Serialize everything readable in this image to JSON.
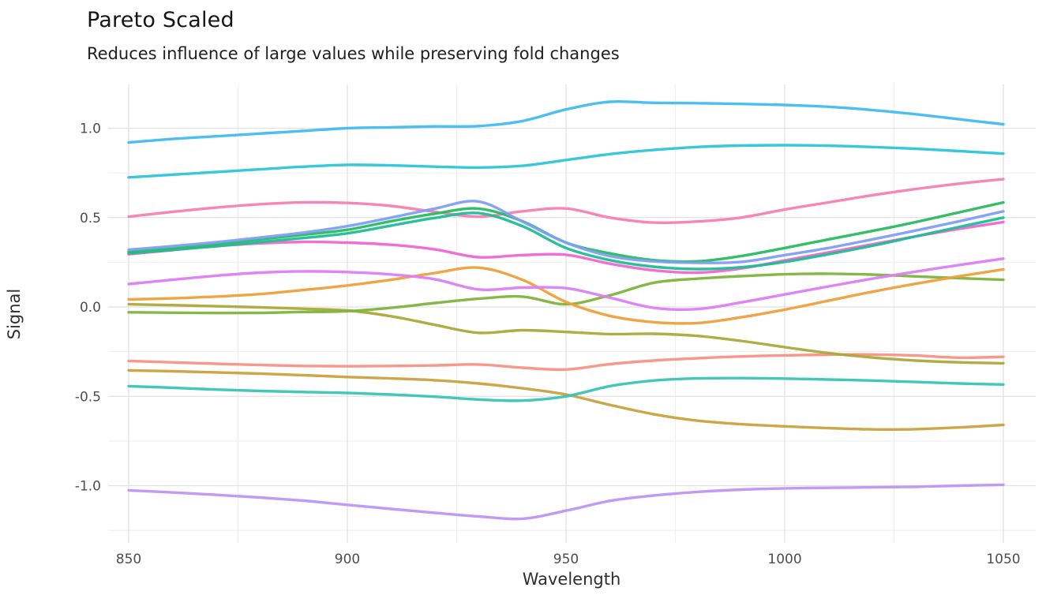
{
  "header": {
    "title": "Pareto Scaled",
    "subtitle": "Reduces influence of large values while preserving fold changes"
  },
  "axes": {
    "x_title": "Wavelength",
    "y_title": "Signal"
  },
  "style": {
    "background": "#ffffff",
    "grid_major_color": "#e2e2e2",
    "grid_minor_color": "#efefef",
    "tick_label_color": "#4d4d4d",
    "line_width": 3.4
  },
  "chart_data": {
    "type": "line",
    "title": "Pareto Scaled",
    "subtitle": "Reduces influence of large values while preserving fold changes",
    "xlabel": "Wavelength",
    "ylabel": "Signal",
    "xlim": [
      845.3,
      1057.4
    ],
    "ylim": [
      -1.32,
      1.245
    ],
    "x_ticks": [
      850,
      900,
      950,
      1000,
      1050
    ],
    "x_minor_ticks": [
      875,
      925,
      975,
      1025
    ],
    "y_ticks": [
      1.0,
      0.5,
      0.0,
      -0.5,
      -1.0
    ],
    "y_minor_ticks": [
      0.75,
      0.25,
      -0.25,
      -0.75,
      -1.25
    ],
    "grid": true,
    "legend": "none",
    "x": [
      850,
      860,
      870,
      880,
      890,
      900,
      910,
      920,
      930,
      940,
      950,
      960,
      970,
      980,
      990,
      1000,
      1010,
      1020,
      1030,
      1040,
      1050
    ],
    "series": [
      {
        "name": "lavender",
        "color": "#BE95F5",
        "values": [
          -1.026,
          -1.038,
          -1.051,
          -1.066,
          -1.084,
          -1.107,
          -1.13,
          -1.152,
          -1.172,
          -1.185,
          -1.14,
          -1.085,
          -1.055,
          -1.035,
          -1.022,
          -1.015,
          -1.012,
          -1.009,
          -1.006,
          -1.0,
          -0.995
        ]
      },
      {
        "name": "salmon",
        "color": "#F89186",
        "values": [
          -0.302,
          -0.31,
          -0.318,
          -0.325,
          -0.33,
          -0.332,
          -0.33,
          -0.327,
          -0.322,
          -0.34,
          -0.35,
          -0.32,
          -0.3,
          -0.287,
          -0.277,
          -0.271,
          -0.267,
          -0.266,
          -0.272,
          -0.284,
          -0.279
        ]
      },
      {
        "name": "gold",
        "color": "#C9A13D",
        "values": [
          -0.355,
          -0.36,
          -0.366,
          -0.373,
          -0.382,
          -0.392,
          -0.4,
          -0.41,
          -0.428,
          -0.455,
          -0.49,
          -0.548,
          -0.6,
          -0.636,
          -0.656,
          -0.668,
          -0.678,
          -0.685,
          -0.684,
          -0.674,
          -0.66
        ]
      },
      {
        "name": "teal",
        "color": "#38C4B4",
        "values": [
          -0.443,
          -0.452,
          -0.462,
          -0.47,
          -0.476,
          -0.481,
          -0.49,
          -0.502,
          -0.518,
          -0.524,
          -0.5,
          -0.443,
          -0.412,
          -0.4,
          -0.398,
          -0.401,
          -0.406,
          -0.412,
          -0.42,
          -0.428,
          -0.434
        ]
      },
      {
        "name": "olive",
        "color": "#ABA939",
        "values": [
          0.015,
          0.01,
          0.004,
          -0.002,
          -0.01,
          -0.02,
          -0.052,
          -0.1,
          -0.145,
          -0.13,
          -0.14,
          -0.152,
          -0.15,
          -0.162,
          -0.19,
          -0.225,
          -0.258,
          -0.283,
          -0.3,
          -0.31,
          -0.315
        ]
      },
      {
        "name": "apple-green",
        "color": "#7EB43C",
        "values": [
          -0.03,
          -0.032,
          -0.034,
          -0.033,
          -0.028,
          -0.024,
          -0.005,
          0.022,
          0.046,
          0.058,
          0.015,
          0.065,
          0.135,
          0.158,
          0.172,
          0.183,
          0.186,
          0.181,
          0.171,
          0.161,
          0.152
        ]
      },
      {
        "name": "orange",
        "color": "#EFA03B",
        "values": [
          0.042,
          0.048,
          0.058,
          0.072,
          0.095,
          0.12,
          0.152,
          0.19,
          0.22,
          0.152,
          0.028,
          -0.05,
          -0.085,
          -0.09,
          -0.058,
          -0.015,
          0.035,
          0.085,
          0.13,
          0.172,
          0.21
        ]
      },
      {
        "name": "orchid",
        "color": "#DC7EF4",
        "values": [
          0.128,
          0.152,
          0.175,
          0.192,
          0.199,
          0.195,
          0.182,
          0.155,
          0.098,
          0.108,
          0.105,
          0.052,
          -0.005,
          -0.012,
          0.025,
          0.07,
          0.115,
          0.158,
          0.198,
          0.235,
          0.27
        ]
      },
      {
        "name": "magenta",
        "color": "#EF67D3",
        "values": [
          0.295,
          0.318,
          0.34,
          0.356,
          0.364,
          0.36,
          0.348,
          0.322,
          0.278,
          0.29,
          0.292,
          0.242,
          0.205,
          0.192,
          0.215,
          0.26,
          0.305,
          0.35,
          0.395,
          0.437,
          0.475
        ]
      },
      {
        "name": "rose",
        "color": "#F77FB0",
        "values": [
          0.505,
          0.532,
          0.556,
          0.575,
          0.585,
          0.582,
          0.565,
          0.532,
          0.505,
          0.535,
          0.551,
          0.5,
          0.472,
          0.478,
          0.5,
          0.545,
          0.585,
          0.625,
          0.66,
          0.69,
          0.715
        ]
      },
      {
        "name": "sea-green",
        "color": "#1FBD93",
        "values": [
          0.3,
          0.319,
          0.34,
          0.363,
          0.386,
          0.412,
          0.455,
          0.498,
          0.525,
          0.452,
          0.33,
          0.262,
          0.225,
          0.212,
          0.222,
          0.252,
          0.295,
          0.342,
          0.395,
          0.448,
          0.5
        ]
      },
      {
        "name": "green",
        "color": "#27BC60",
        "values": [
          0.31,
          0.33,
          0.353,
          0.378,
          0.404,
          0.432,
          0.48,
          0.522,
          0.55,
          0.48,
          0.36,
          0.3,
          0.262,
          0.255,
          0.285,
          0.33,
          0.378,
          0.425,
          0.475,
          0.53,
          0.585
        ]
      },
      {
        "name": "cyan",
        "color": "#2EC4D9",
        "values": [
          0.725,
          0.74,
          0.755,
          0.77,
          0.785,
          0.795,
          0.792,
          0.785,
          0.78,
          0.79,
          0.822,
          0.855,
          0.878,
          0.895,
          0.903,
          0.905,
          0.902,
          0.895,
          0.885,
          0.872,
          0.858
        ]
      },
      {
        "name": "sky-blue",
        "color": "#41BCF1",
        "values": [
          0.92,
          0.94,
          0.955,
          0.97,
          0.985,
          1.0,
          1.005,
          1.01,
          1.012,
          1.04,
          1.105,
          1.148,
          1.142,
          1.14,
          1.136,
          1.13,
          1.12,
          1.102,
          1.078,
          1.05,
          1.022
        ]
      },
      {
        "name": "cornflower",
        "color": "#7E9FF7",
        "values": [
          0.32,
          0.34,
          0.362,
          0.388,
          0.416,
          0.452,
          0.5,
          0.55,
          0.59,
          0.478,
          0.36,
          0.285,
          0.255,
          0.247,
          0.252,
          0.29,
          0.33,
          0.378,
          0.428,
          0.48,
          0.535
        ]
      }
    ]
  }
}
